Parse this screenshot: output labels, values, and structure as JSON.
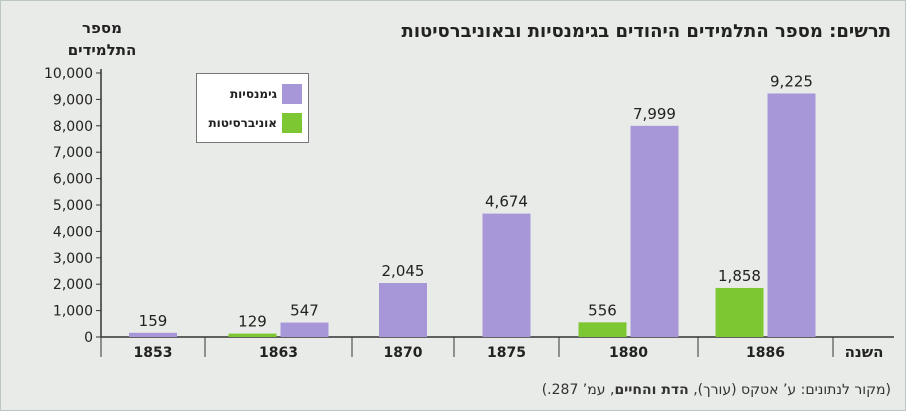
{
  "title": "תרשים: מספר התלמידים היהודים בגימנסיות ובאוניברסיטות",
  "source": {
    "prefix": "(מקור לנתונים: ע’ אטקס (עורך), ",
    "book": "הדת והחיים",
    "suffix": ", עמ’ 287.)"
  },
  "colors": {
    "gymnasium": "#a797d8",
    "university": "#7dc832",
    "background": "#e9ebe8",
    "axis": "#333333"
  },
  "chart_data": {
    "type": "bar",
    "title": "תרשים: מספר התלמידים היהודים בגימנסיות ובאוניברסיטות",
    "ylabel": "מספר התלמידים",
    "xlabel": "השנה",
    "ylim": [
      0,
      10000
    ],
    "yticks": [
      0,
      1000,
      2000,
      3000,
      4000,
      5000,
      6000,
      7000,
      8000,
      9000,
      10000
    ],
    "ytick_labels": [
      "0",
      "1,000",
      "2,000",
      "3,000",
      "4,000",
      "5,000",
      "6,000",
      "7,000",
      "8,000",
      "9,000",
      "10,000"
    ],
    "grid": false,
    "legend_position": "top-left",
    "categories": [
      "1853",
      "1863",
      "1870",
      "1875",
      "1880",
      "1886"
    ],
    "series": [
      {
        "name": "גימנסיות",
        "color": "#a797d8",
        "values": [
          159,
          547,
          2045,
          4674,
          7999,
          9225
        ],
        "labels": [
          "159",
          "547",
          "2,045",
          "4,674",
          "7,999",
          "9,225"
        ]
      },
      {
        "name": "אוניברסיטות",
        "color": "#7dc832",
        "values": [
          null,
          129,
          null,
          null,
          556,
          1858
        ],
        "labels": [
          "",
          "129",
          "",
          "",
          "556",
          "1,858"
        ]
      }
    ]
  }
}
